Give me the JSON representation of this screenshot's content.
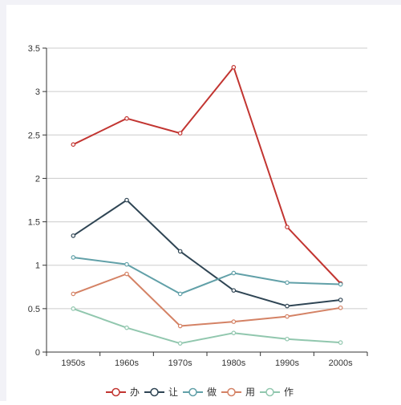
{
  "chart_data": {
    "type": "line",
    "title": "",
    "xlabel": "",
    "ylabel": "",
    "categories": [
      "1950s",
      "1960s",
      "1970s",
      "1980s",
      "1990s",
      "2000s"
    ],
    "ylim": [
      0,
      3.5
    ],
    "yticks": [
      0,
      0.5,
      1,
      1.5,
      2,
      2.5,
      3,
      3.5
    ],
    "ytick_labels": [
      "0",
      "0.5",
      "1",
      "1.5",
      "2",
      "2.5",
      "3",
      "3.5"
    ],
    "grid": true,
    "legend_position": "bottom-center",
    "series": [
      {
        "name": "办",
        "color": "#c23531",
        "values": [
          2.39,
          2.69,
          2.52,
          3.28,
          1.44,
          0.79
        ]
      },
      {
        "name": "让",
        "color": "#2f4554",
        "values": [
          1.34,
          1.75,
          1.16,
          0.71,
          0.53,
          0.6
        ]
      },
      {
        "name": "做",
        "color": "#61a0a8",
        "values": [
          1.09,
          1.01,
          0.67,
          0.91,
          0.8,
          0.78
        ]
      },
      {
        "name": "用",
        "color": "#d48265",
        "values": [
          0.67,
          0.9,
          0.3,
          0.35,
          0.41,
          0.51
        ]
      },
      {
        "name": "作",
        "color": "#91c7ae",
        "values": [
          0.5,
          0.28,
          0.1,
          0.22,
          0.15,
          0.11
        ]
      }
    ]
  }
}
